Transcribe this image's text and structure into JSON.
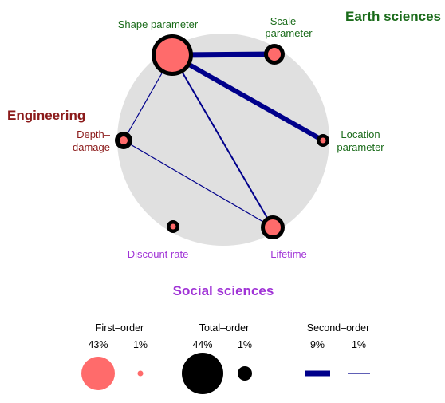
{
  "groups": {
    "earth": {
      "label": "Earth sciences",
      "color": "#1a6b1a"
    },
    "engineering": {
      "label": "Engineering",
      "color": "#8b1a1a"
    },
    "social": {
      "label": "Social sciences",
      "color": "#a033d6"
    }
  },
  "nodes": {
    "shape": {
      "label": "Shape parameter",
      "first_order": 43,
      "total_order": 44
    },
    "scale": {
      "label_line1": "Scale",
      "label_line2": "parameter"
    },
    "location": {
      "label_line1": "Location",
      "label_line2": "parameter"
    },
    "depth_damage": {
      "label_line1": "Depth–",
      "label_line2": "damage"
    },
    "discount": {
      "label": "Discount rate"
    },
    "lifetime": {
      "label": "Lifetime"
    }
  },
  "edges": [
    {
      "from": "shape",
      "to": "scale",
      "second_order_level": "thick"
    },
    {
      "from": "shape",
      "to": "location",
      "second_order_level": "thick"
    },
    {
      "from": "shape",
      "to": "lifetime",
      "second_order_level": "medium"
    },
    {
      "from": "shape",
      "to": "depth_damage",
      "second_order_level": "thin"
    },
    {
      "from": "depth_damage",
      "to": "lifetime",
      "second_order_level": "thin"
    }
  ],
  "legend": {
    "first_order": {
      "title": "First–order",
      "max_label": "43%",
      "min_label": "1%"
    },
    "total_order": {
      "title": "Total–order",
      "max_label": "44%",
      "min_label": "1%"
    },
    "second_order": {
      "title": "Second–order",
      "max_label": "9%",
      "min_label": "1%"
    }
  },
  "colors": {
    "first_order_fill": "#ff6b6b",
    "total_order_ring": "#000000",
    "edge": "#00008b",
    "background_circle": "#e0e0e0"
  }
}
